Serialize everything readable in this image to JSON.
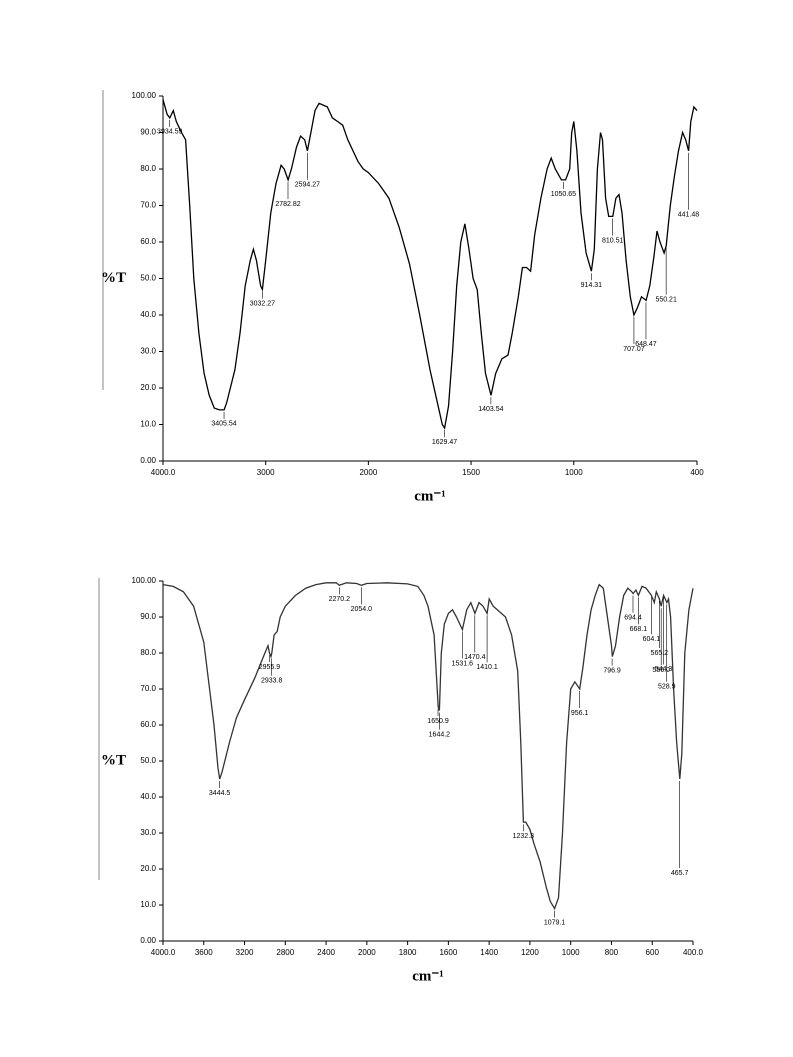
{
  "chart_data": [
    {
      "type": "line",
      "color": "#000000",
      "ylabel": "%T",
      "xlabel": "cm⁻¹",
      "xsplit": 2000,
      "xlim": [
        4000,
        400
      ],
      "ylim": [
        0,
        100
      ],
      "xticks": [
        {
          "value": 4000,
          "label": "4000.0"
        },
        3000,
        2000,
        1500,
        1000,
        400
      ],
      "yticks": [
        {
          "value": 0,
          "label": "0.00"
        },
        {
          "value": 10,
          "label": "10.0"
        },
        {
          "value": 20,
          "label": "20.0"
        },
        {
          "value": 30,
          "label": "30.0"
        },
        {
          "value": 40,
          "label": "40.0"
        },
        {
          "value": 50,
          "label": "50.0"
        },
        {
          "value": 60,
          "label": "60.0"
        },
        {
          "value": 70,
          "label": "70.0"
        },
        {
          "value": 80,
          "label": "80.0"
        },
        {
          "value": 90,
          "label": "90.0"
        },
        {
          "value": 100,
          "label": "100.00"
        }
      ],
      "x": [
        4000,
        3960,
        3934,
        3900,
        3870,
        3820,
        3780,
        3740,
        3700,
        3650,
        3600,
        3550,
        3500,
        3450,
        3405,
        3380,
        3300,
        3250,
        3200,
        3150,
        3120,
        3090,
        3050,
        3032,
        3000,
        2950,
        2900,
        2850,
        2820,
        2782,
        2750,
        2700,
        2660,
        2620,
        2594,
        2560,
        2520,
        2480,
        2440,
        2400,
        2350,
        2300,
        2250,
        2200,
        2100,
        2050,
        2000,
        1950,
        1900,
        1850,
        1800,
        1750,
        1700,
        1660,
        1640,
        1629,
        1610,
        1590,
        1570,
        1550,
        1530,
        1510,
        1490,
        1470,
        1450,
        1430,
        1403,
        1380,
        1350,
        1320,
        1300,
        1270,
        1250,
        1230,
        1210,
        1190,
        1160,
        1130,
        1110,
        1090,
        1060,
        1040,
        1020,
        1010,
        1000,
        985,
        965,
        940,
        914,
        900,
        885,
        870,
        860,
        845,
        830,
        810,
        795,
        780,
        765,
        745,
        725,
        707,
        690,
        670,
        648,
        630,
        610,
        595,
        580,
        560,
        550,
        530,
        510,
        490,
        470,
        455,
        441,
        430,
        415,
        400
      ],
      "values": [
        99,
        95,
        94,
        96,
        93,
        90,
        88,
        70,
        50,
        35,
        24,
        18,
        14.5,
        14,
        14,
        16,
        25,
        35,
        48,
        55,
        58,
        55,
        48,
        47,
        55,
        68,
        76,
        81,
        80,
        77,
        80,
        86,
        89,
        88,
        85,
        90,
        96,
        98,
        97.5,
        97,
        94,
        93,
        92,
        88,
        82,
        80,
        79,
        76,
        72,
        64,
        54,
        40,
        25,
        15,
        10,
        9,
        15,
        30,
        48,
        60,
        65,
        58,
        50,
        47,
        35,
        24,
        18,
        24,
        28,
        29,
        35,
        45,
        53,
        53,
        52,
        62,
        72,
        80,
        83,
        80,
        77,
        77,
        80,
        90,
        93,
        85,
        68,
        57,
        52,
        58,
        80,
        90,
        88,
        72,
        67,
        67,
        72,
        73,
        68,
        55,
        45,
        40,
        42,
        45,
        44,
        48,
        56,
        63,
        60,
        57,
        59,
        70,
        78,
        85,
        90,
        88,
        85,
        93,
        97,
        96
      ],
      "annotations": [
        {
          "label": "3934.59",
          "x": 3934.59,
          "y": 94
        },
        {
          "label": "3405.54",
          "x": 3405.54,
          "y": 14
        },
        {
          "label": "3032.27",
          "x": 3032.27,
          "y": 47
        },
        {
          "label": "2782.82",
          "x": 2782.82,
          "y": 77
        },
        {
          "label": "2594.27",
          "x": 2594.27,
          "y": 85
        },
        {
          "label": "1629.47",
          "x": 1629.47,
          "y": 9
        },
        {
          "label": "1403.54",
          "x": 1403.54,
          "y": 18
        },
        {
          "label": "1050.65",
          "x": 1050.65,
          "y": 77
        },
        {
          "label": "914.31",
          "x": 914.31,
          "y": 52
        },
        {
          "label": "810.51",
          "x": 810.51,
          "y": 67
        },
        {
          "label": "707.07",
          "x": 707.07,
          "y": 40
        },
        {
          "label": "648.47",
          "x": 648.47,
          "y": 44
        },
        {
          "label": "550.21",
          "x": 550.21,
          "y": 59
        },
        {
          "label": "441.48",
          "x": 441.48,
          "y": 85
        }
      ]
    },
    {
      "type": "line",
      "color": "#333333",
      "ylabel": "%T",
      "xlabel": "cm⁻¹",
      "xsplit": 2000,
      "xlim": [
        4000,
        400
      ],
      "ylim": [
        0,
        100
      ],
      "xticks": [
        {
          "value": 4000,
          "label": "4000.0"
        },
        3600,
        3200,
        2800,
        2400,
        2000,
        1800,
        1600,
        1400,
        1200,
        1000,
        800,
        600,
        {
          "value": 400,
          "label": "400.0"
        }
      ],
      "yticks": [
        {
          "value": 0,
          "label": "0.00"
        },
        {
          "value": 10,
          "label": "10.0"
        },
        {
          "value": 20,
          "label": "20.0"
        },
        {
          "value": 30,
          "label": "30.0"
        },
        {
          "value": 40,
          "label": "40.0"
        },
        {
          "value": 50,
          "label": "50.0"
        },
        {
          "value": 60,
          "label": "60.0"
        },
        {
          "value": 70,
          "label": "70.0"
        },
        {
          "value": 80,
          "label": "80.0"
        },
        {
          "value": 90,
          "label": "90.0"
        },
        {
          "value": 100,
          "label": "100.00"
        }
      ],
      "x": [
        4000,
        3900,
        3800,
        3700,
        3600,
        3500,
        3460,
        3444,
        3420,
        3350,
        3280,
        3200,
        3100,
        3000,
        2970,
        2955,
        2940,
        2933,
        2910,
        2880,
        2850,
        2800,
        2700,
        2600,
        2500,
        2400,
        2300,
        2270,
        2200,
        2100,
        2054,
        2000,
        1900,
        1800,
        1750,
        1720,
        1700,
        1670,
        1655,
        1650,
        1644,
        1635,
        1620,
        1600,
        1580,
        1560,
        1531,
        1510,
        1490,
        1470,
        1450,
        1430,
        1410,
        1400,
        1380,
        1360,
        1320,
        1290,
        1260,
        1245,
        1232,
        1220,
        1200,
        1180,
        1150,
        1120,
        1100,
        1079,
        1060,
        1040,
        1020,
        1000,
        980,
        956,
        940,
        920,
        900,
        880,
        860,
        840,
        820,
        800,
        796,
        780,
        760,
        740,
        720,
        700,
        694,
        680,
        668,
        650,
        630,
        604,
        590,
        580,
        565,
        556,
        544,
        528,
        520,
        510,
        495,
        480,
        465,
        455,
        440,
        420,
        400
      ],
      "values": [
        99,
        98.5,
        97,
        93,
        83,
        60,
        48,
        45,
        47,
        55,
        62,
        67,
        73,
        80,
        82,
        80,
        79,
        80,
        85,
        86,
        90,
        93,
        96,
        98,
        99,
        99.5,
        99.5,
        98.8,
        99.5,
        99.3,
        98.8,
        99.3,
        99.5,
        99.2,
        98.5,
        96,
        93,
        85,
        70,
        65,
        64,
        80,
        88,
        91,
        92,
        90,
        86.5,
        92,
        94,
        91,
        94,
        93,
        91,
        95,
        93,
        92,
        90,
        85,
        75,
        55,
        33,
        33,
        31,
        27,
        22,
        15,
        11,
        9,
        12,
        30,
        55,
        70,
        72,
        70,
        76,
        85,
        92,
        96,
        99,
        98,
        90,
        82,
        79,
        82,
        90,
        96,
        98,
        97,
        96.5,
        97.5,
        96,
        98.5,
        98,
        96,
        94,
        97,
        95,
        93,
        96,
        94,
        95,
        90,
        70,
        55,
        45,
        52,
        80,
        92,
        98
      ],
      "annotations": [
        {
          "label": "3444.5",
          "x": 3444.5,
          "y": 45
        },
        {
          "label": "2955.9",
          "x": 2955.9,
          "y": 80
        },
        {
          "label": "2933.8",
          "x": 2933.8,
          "y": 79
        },
        {
          "label": "2270.2",
          "x": 2270.2,
          "y": 98.8
        },
        {
          "label": "2054.0",
          "x": 2054.0,
          "y": 98.8
        },
        {
          "label": "1650.9",
          "x": 1650.9,
          "y": 65
        },
        {
          "label": "1644.2",
          "x": 1644.2,
          "y": 64
        },
        {
          "label": "1531.6",
          "x": 1531.6,
          "y": 86.5
        },
        {
          "label": "1470.4",
          "x": 1470.4,
          "y": 91
        },
        {
          "label": "1410.1",
          "x": 1410.1,
          "y": 91
        },
        {
          "label": "1232.3",
          "x": 1232.3,
          "y": 33
        },
        {
          "label": "1079.1",
          "x": 1079.1,
          "y": 9
        },
        {
          "label": "956.1",
          "x": 956.1,
          "y": 70
        },
        {
          "label": "796.9",
          "x": 796.9,
          "y": 79
        },
        {
          "label": "694.4",
          "x": 694.4,
          "y": 96.5
        },
        {
          "label": "668.1",
          "x": 668.1,
          "y": 96
        },
        {
          "label": "604.1",
          "x": 604.1,
          "y": 96
        },
        {
          "label": "565.2",
          "x": 565.2,
          "y": 95
        },
        {
          "label": "556.0",
          "x": 556.0,
          "y": 93
        },
        {
          "label": "544.3",
          "x": 544.3,
          "y": 96
        },
        {
          "label": "528.9",
          "x": 528.9,
          "y": 94
        },
        {
          "label": "465.7",
          "x": 465.7,
          "y": 45
        }
      ]
    }
  ]
}
